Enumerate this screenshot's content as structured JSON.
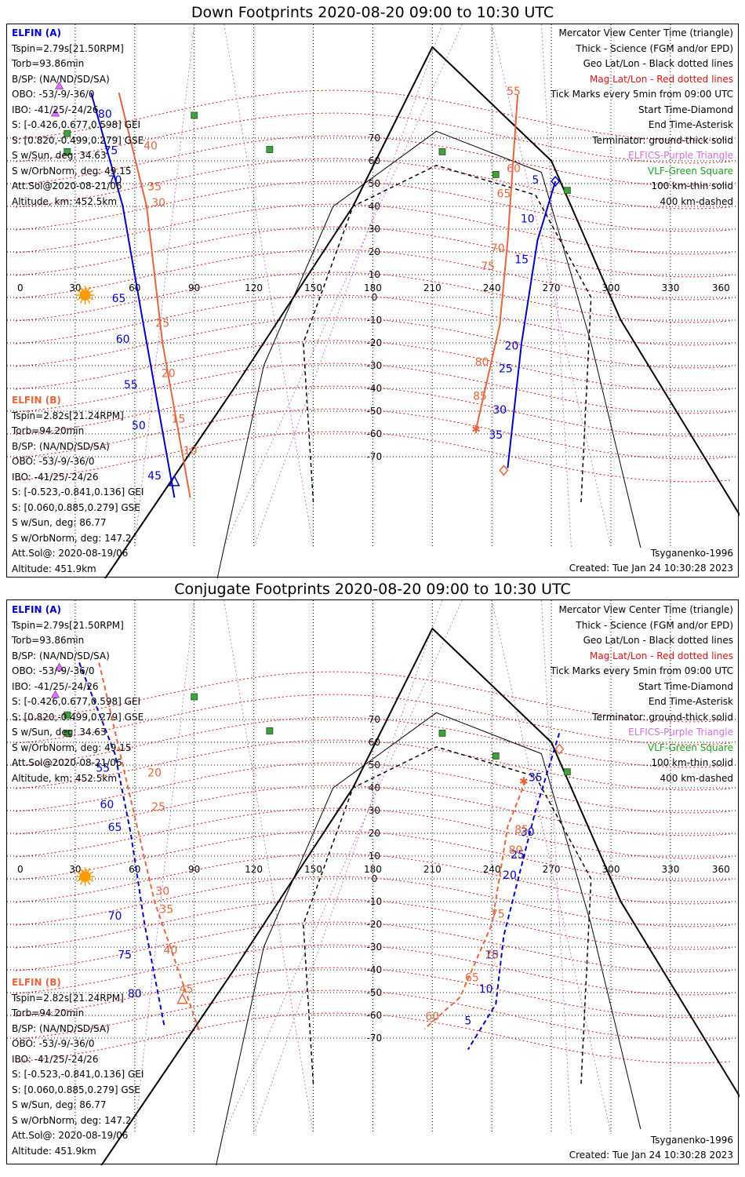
{
  "colors": {
    "elfin_a": "#0000cc",
    "elfin_b": "#e8643c",
    "mag_grid": "#e01010",
    "geo_grid": "#000000",
    "elfics": "#d070e0",
    "vlf": "#20a020",
    "sun": "#ff9900"
  },
  "map": {
    "lon_ticks": [
      "0",
      "30",
      "60",
      "90",
      "120",
      "150",
      "180",
      "210",
      "240",
      "270",
      "300",
      "330",
      "360"
    ],
    "lat_ticks": [
      "70",
      "60",
      "50",
      "40",
      "30",
      "20",
      "10",
      "0",
      "-10",
      "-20",
      "-30",
      "-40",
      "-50",
      "-60",
      "-70"
    ],
    "legend": [
      {
        "text": "Mercator View Center Time (triangle)",
        "cls": ""
      },
      {
        "text": "Thick - Science (FGM and/or EPD)",
        "cls": ""
      },
      {
        "text": "Geo Lat/Lon - Black dotted lines",
        "cls": ""
      },
      {
        "text": "Mag Lat/Lon - Red dotted lines",
        "cls": "mag-line"
      },
      {
        "text": "Tick Marks every 5min from 09:00 UTC",
        "cls": ""
      },
      {
        "text": "Start Time-Diamond",
        "cls": ""
      },
      {
        "text": "End Time-Asterisk",
        "cls": ""
      },
      {
        "text": "Terminator: ground-thick solid",
        "cls": ""
      },
      {
        "text": "ELFICS-Purple Triangle",
        "cls": "elfics"
      },
      {
        "text": "VLF-Green Square",
        "cls": "vlf"
      },
      {
        "text": "100 km-thin solid",
        "cls": ""
      },
      {
        "text": "400 km-dashed",
        "cls": ""
      }
    ],
    "elfin_a_info": [
      {
        "text": "ELFIN (A)",
        "cls": "elfin-a"
      },
      {
        "text": "Tspin=2.79s[21.50RPM]",
        "cls": ""
      },
      {
        "text": "Torb=93.86min",
        "cls": ""
      },
      {
        "text": "B/SP: (NA/ND/SD/SA)",
        "cls": ""
      },
      {
        "text": "OBO: -53/-9/-36/0",
        "cls": ""
      },
      {
        "text": "IBO: -41/25/-24/26",
        "cls": ""
      },
      {
        "text": "S: [-0.426,0.677,0.598] GEI",
        "cls": ""
      },
      {
        "text": "S: [0.820,-0.499,0.279] GSE",
        "cls": ""
      },
      {
        "text": "S w/Sun, deg: 34.63",
        "cls": ""
      },
      {
        "text": "S w/OrbNorm, deg: 49.15",
        "cls": ""
      },
      {
        "text": "Att.Sol@2020-08-21/06",
        "cls": ""
      },
      {
        "text": "Altitude, km: 452.5km",
        "cls": ""
      }
    ],
    "elfin_b_info": [
      {
        "text": "ELFIN (B)",
        "cls": "elfin-b"
      },
      {
        "text": "Tspin=2.82s[21.24RPM]",
        "cls": ""
      },
      {
        "text": "Torb=94.20min",
        "cls": ""
      },
      {
        "text": "B/SP: (NA/ND/SD/SA)",
        "cls": ""
      },
      {
        "text": "OBO: -53/-9/-36/0",
        "cls": ""
      },
      {
        "text": "IBO: -41/25/-24/26",
        "cls": ""
      },
      {
        "text": "S: [-0.523,-0.841,0.136] GEI",
        "cls": ""
      },
      {
        "text": "S: [0.060,0.885,0.279] GSE",
        "cls": ""
      },
      {
        "text": "S w/Sun, deg: 86.77",
        "cls": ""
      },
      {
        "text": "S w/OrbNorm, deg: 147.2",
        "cls": ""
      },
      {
        "text": "Att.Sol@: 2020-08-19/06",
        "cls": ""
      },
      {
        "text": "Altitude: 451.9km",
        "cls": ""
      }
    ],
    "model": "Tsyganenko-1996",
    "created": "Created: Tue Jan 24 10:30:28 2023"
  },
  "panels": [
    {
      "id": "down",
      "title": "Down Footprints 2020-08-20 09:00 to 10:30 UTC",
      "tracks": [
        {
          "sat": "A",
          "lonlat": [
            [
              272,
              51
            ],
            [
              263,
              25
            ],
            [
              255,
              -20
            ],
            [
              248,
              -75
            ]
          ],
          "dashed": false,
          "labels": [
            {
              "t": "5",
              "lon": 262,
              "lat": 50
            },
            {
              "t": "10",
              "lon": 258,
              "lat": 33
            },
            {
              "t": "15",
              "lon": 255,
              "lat": 15
            },
            {
              "t": "20",
              "lon": 250,
              "lat": -23
            },
            {
              "t": "25",
              "lon": 247,
              "lat": -33
            },
            {
              "t": "30",
              "lon": 244,
              "lat": -51
            },
            {
              "t": "35",
              "lon": 242,
              "lat": -62
            }
          ]
        },
        {
          "sat": "B",
          "lonlat": [
            [
              253,
              89
            ],
            [
              248,
              25
            ],
            [
              244,
              -12
            ],
            [
              232,
              -58
            ]
          ],
          "dashed": false,
          "labels": [
            {
              "t": "55",
              "lon": 251,
              "lat": 89
            },
            {
              "t": "60",
              "lon": 251,
              "lat": 55
            },
            {
              "t": "65",
              "lon": 246,
              "lat": 44
            },
            {
              "t": "70",
              "lon": 243,
              "lat": 20
            },
            {
              "t": "75",
              "lon": 238,
              "lat": 12
            },
            {
              "t": "80",
              "lon": 235,
              "lat": -30
            },
            {
              "t": "85",
              "lon": 234,
              "lat": -45
            }
          ]
        },
        {
          "sat": "A",
          "lonlat": [
            [
              38,
              90
            ],
            [
              54,
              40
            ],
            [
              64,
              -10
            ],
            [
              80,
              -88
            ]
          ],
          "dashed": false,
          "labels": [
            {
              "t": "80",
              "lon": 45,
              "lat": 79
            },
            {
              "t": "75",
              "lon": 48,
              "lat": 63
            },
            {
              "t": "70",
              "lon": 50,
              "lat": 50
            },
            {
              "t": "65",
              "lon": 52,
              "lat": -2
            },
            {
              "t": "60",
              "lon": 54,
              "lat": -20
            },
            {
              "t": "55",
              "lon": 58,
              "lat": -40
            },
            {
              "t": "50",
              "lon": 62,
              "lat": -58
            },
            {
              "t": "45",
              "lon": 70,
              "lat": -80
            }
          ]
        },
        {
          "sat": "B",
          "lonlat": [
            [
              52,
              90
            ],
            [
              66,
              40
            ],
            [
              74,
              -20
            ],
            [
              88,
              -88
            ]
          ],
          "dashed": false,
          "labels": [
            {
              "t": "40",
              "lon": 68,
              "lat": 65
            },
            {
              "t": "35",
              "lon": 70,
              "lat": 47
            },
            {
              "t": "30",
              "lon": 72,
              "lat": 40
            },
            {
              "t": "25",
              "lon": 74,
              "lat": -13
            },
            {
              "t": "20",
              "lon": 77,
              "lat": -35
            },
            {
              "t": "15",
              "lon": 82,
              "lat": -55
            },
            {
              "t": "10",
              "lon": 88,
              "lat": -69
            }
          ]
        }
      ]
    },
    {
      "id": "conj",
      "title": "Conjugate Footprints 2020-08-20 09:00 to 10:30 UTC",
      "tracks": [
        {
          "sat": "A",
          "lonlat": [
            [
              274,
              64
            ],
            [
              262,
              30
            ],
            [
              246,
              -25
            ],
            [
              242,
              -55
            ],
            [
              228,
              -75
            ]
          ],
          "dashed": true,
          "labels": [
            {
              "t": "35",
              "lon": 262,
              "lat": 43
            },
            {
              "t": "30",
              "lon": 258,
              "lat": 19
            },
            {
              "t": "25",
              "lon": 253,
              "lat": 9
            },
            {
              "t": "20",
              "lon": 249,
              "lat": 0
            },
            {
              "t": "15",
              "lon": 240,
              "lat": -35
            },
            {
              "t": "10",
              "lon": 237,
              "lat": -50
            },
            {
              "t": "5",
              "lon": 228,
              "lat": -64
            }
          ]
        },
        {
          "sat": "B",
          "lonlat": [
            [
              257,
              43
            ],
            [
              248,
              23
            ],
            [
              240,
              -20
            ],
            [
              224,
              -52
            ],
            [
              206,
              -66
            ]
          ],
          "dashed": true,
          "labels": [
            {
              "t": "85",
              "lon": 255,
              "lat": 20
            },
            {
              "t": "80",
              "lon": 252,
              "lat": 11
            },
            {
              "t": "75",
              "lon": 243,
              "lat": -17
            },
            {
              "t": "70",
              "lon": 240,
              "lat": -35
            },
            {
              "t": "65",
              "lon": 230,
              "lat": -45
            },
            {
              "t": "60",
              "lon": 210,
              "lat": -62
            }
          ]
        },
        {
          "sat": "A",
          "lonlat": [
            [
              32,
              95
            ],
            [
              50,
              55
            ],
            [
              58,
              20
            ],
            [
              65,
              -20
            ],
            [
              75,
              -65
            ]
          ],
          "dashed": true,
          "labels": [
            {
              "t": "55",
              "lon": 44,
              "lat": 47
            },
            {
              "t": "60",
              "lon": 46,
              "lat": 31
            },
            {
              "t": "65",
              "lon": 50,
              "lat": 21
            },
            {
              "t": "70",
              "lon": 50,
              "lat": -18
            },
            {
              "t": "75",
              "lon": 55,
              "lat": -35
            },
            {
              "t": "80",
              "lon": 60,
              "lat": -52
            }
          ]
        },
        {
          "sat": "B",
          "lonlat": [
            [
              42,
              95
            ],
            [
              58,
              35
            ],
            [
              70,
              -10
            ],
            [
              93,
              -68
            ]
          ],
          "dashed": true,
          "labels": [
            {
              "t": "20",
              "lon": 70,
              "lat": 45
            },
            {
              "t": "25",
              "lon": 72,
              "lat": 30
            },
            {
              "t": "30",
              "lon": 74,
              "lat": -7
            },
            {
              "t": "35",
              "lon": 76,
              "lat": -15
            },
            {
              "t": "40",
              "lon": 78,
              "lat": -33
            },
            {
              "t": "45",
              "lon": 86,
              "lat": -50
            }
          ]
        }
      ]
    }
  ]
}
